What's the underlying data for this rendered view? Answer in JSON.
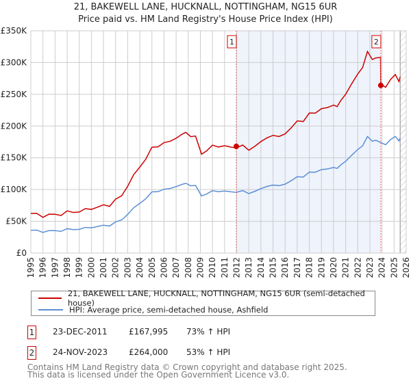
{
  "title": "21, BAKEWELL LANE, HUCKNALL, NOTTINGHAM, NG15 6UR",
  "subtitle": "Price paid vs. HM Land Registry's House Price Index (HPI)",
  "chart_data": {
    "type": "line",
    "title": "21, BAKEWELL LANE, HUCKNALL, NOTTINGHAM, NG15 6UR",
    "xlim": [
      1995,
      2026
    ],
    "ylim": [
      0,
      350000
    ],
    "y_ticks": [
      0,
      50000,
      100000,
      150000,
      200000,
      250000,
      300000,
      350000
    ],
    "y_tick_labels": [
      "£0",
      "£50K",
      "£100K",
      "£150K",
      "£200K",
      "£250K",
      "£300K",
      "£350K"
    ],
    "x_ticks": [
      "1995",
      "1996",
      "1997",
      "1998",
      "1999",
      "2000",
      "2001",
      "2002",
      "2003",
      "2004",
      "2005",
      "2006",
      "2007",
      "2008",
      "2009",
      "2010",
      "2011",
      "2012",
      "2013",
      "2014",
      "2015",
      "2016",
      "2017",
      "2018",
      "2019",
      "2020",
      "2021",
      "2022",
      "2023",
      "2024",
      "2025",
      "2026"
    ],
    "grid": true,
    "shaded_range": [
      2011.97,
      2023.9
    ],
    "future_hatch_from": 2025.5,
    "series": [
      {
        "name": "HPI: Average price, semi-detached house, Ashfield",
        "color": "#5b8fd4",
        "x": [
          1995,
          1995.5,
          1996,
          1996.5,
          1997,
          1997.5,
          1998,
          1998.5,
          1999,
          1999.5,
          2000,
          2000.5,
          2001,
          2001.5,
          2002,
          2002.5,
          2003,
          2003.5,
          2004,
          2004.5,
          2005,
          2005.5,
          2006,
          2006.5,
          2007,
          2007.5,
          2007.8,
          2008.2,
          2008.6,
          2009.1,
          2009.5,
          2010,
          2010.5,
          2011,
          2011.5,
          2011.97,
          2012.5,
          2013,
          2013.5,
          2014,
          2014.5,
          2015,
          2015.5,
          2016,
          2016.5,
          2017,
          2017.5,
          2018,
          2018.5,
          2019,
          2019.5,
          2020,
          2020.3,
          2020.6,
          2021,
          2021.5,
          2022,
          2022.4,
          2022.8,
          2023.2,
          2023.5,
          2023.9,
          2024.3,
          2024.7,
          2025.1,
          2025.4,
          2025.5
        ],
        "y": [
          36000,
          35000,
          34000,
          34500,
          35000,
          35500,
          37000,
          37500,
          38000,
          39000,
          41000,
          41500,
          43000,
          44000,
          48000,
          52000,
          62000,
          70000,
          79000,
          86000,
          95000,
          98000,
          100000,
          101000,
          106000,
          107000,
          110000,
          107000,
          105000,
          91000,
          93000,
          97000,
          98000,
          97000,
          96000,
          97000,
          97000,
          94000,
          98000,
          100000,
          106000,
          107000,
          105000,
          110000,
          113000,
          120000,
          121000,
          126000,
          128000,
          132000,
          131000,
          136000,
          133000,
          138000,
          146000,
          153000,
          163000,
          170000,
          182000,
          177000,
          178000,
          172500,
          172000,
          178000,
          183000,
          178000,
          180000
        ]
      },
      {
        "name": "21, BAKEWELL LANE, HUCKNALL, NOTTINGHAM, NG15 6UR (semi-detached house)",
        "color": "#cc0000",
        "hpi_ratio_before_sale2": 1.73,
        "hpi_ratio_after_sale2": 1.53
      }
    ],
    "sales": [
      {
        "label": "1",
        "x": 2011.97,
        "y": 167995
      },
      {
        "label": "2",
        "x": 2023.9,
        "y": 264000
      }
    ]
  },
  "legend": {
    "property": "21, BAKEWELL LANE, HUCKNALL, NOTTINGHAM, NG15 6UR (semi-detached house)",
    "hpi": "HPI: Average price, semi-detached house, Ashfield"
  },
  "transactions": [
    {
      "num": "1",
      "date": "23-DEC-2011",
      "price": "£167,995",
      "hpi": "73% ↑ HPI"
    },
    {
      "num": "2",
      "date": "24-NOV-2023",
      "price": "£264,000",
      "hpi": "53% ↑ HPI"
    }
  ],
  "footer": {
    "line1": "Contains HM Land Registry data © Crown copyright and database right 2025.",
    "line2": "This data is licensed under the Open Government Licence v3.0."
  }
}
